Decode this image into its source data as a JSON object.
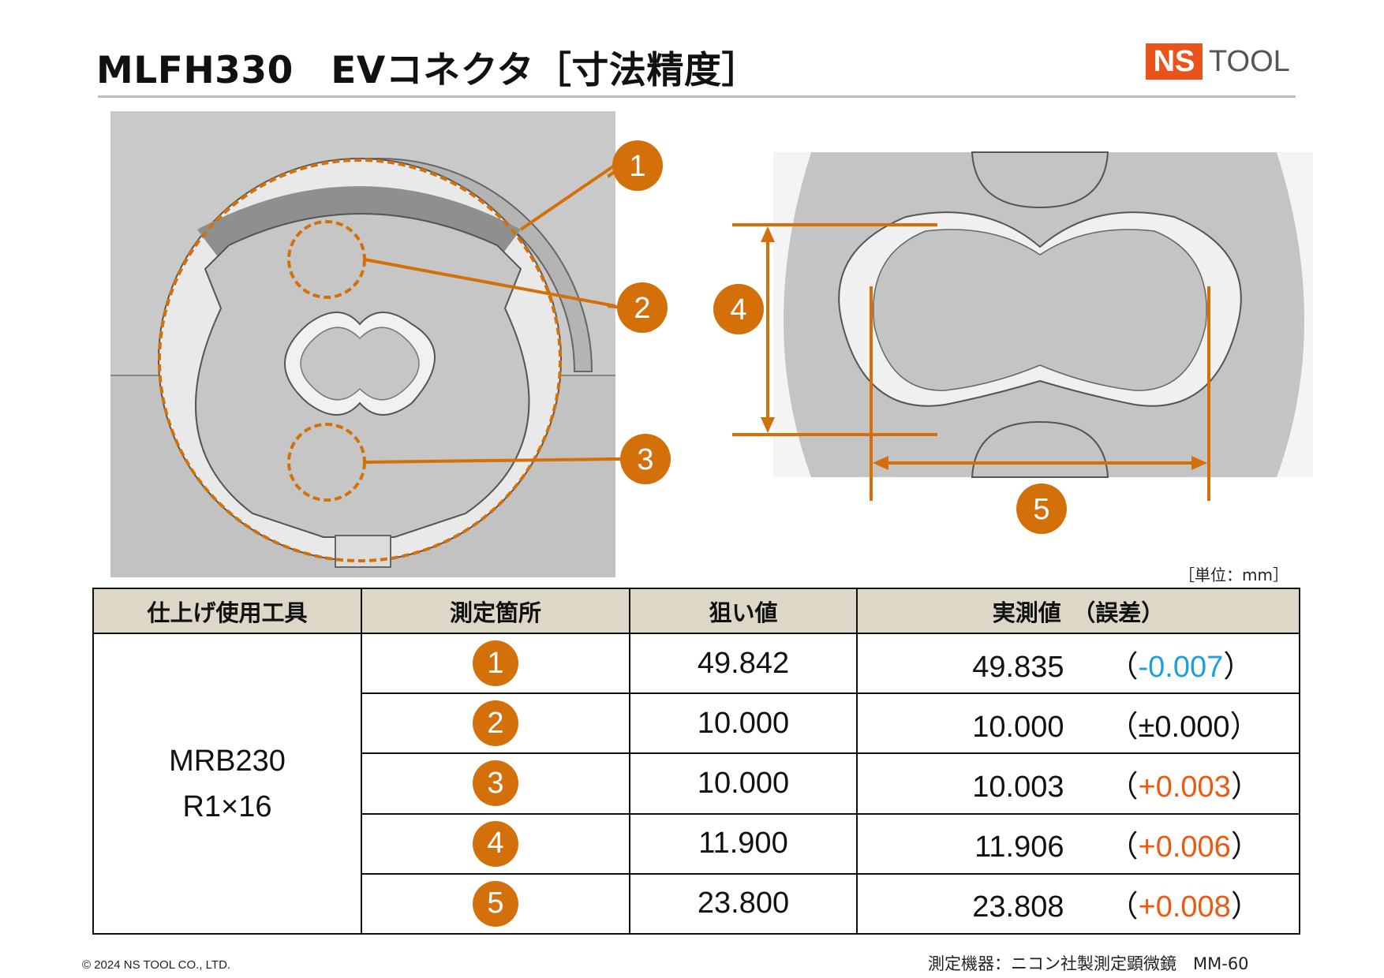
{
  "header": {
    "title": "MLFH330　EVコネクタ［寸法精度］",
    "logo": {
      "box_text": "NS",
      "text": "TOOL",
      "brand_color": "#e8541c"
    }
  },
  "figure_labels": {
    "left": [
      "1",
      "2",
      "3"
    ],
    "right": [
      "4",
      "5"
    ]
  },
  "unit_label": "［単位：mm］",
  "table": {
    "headers": [
      "仕上げ使用工具",
      "測定箇所",
      "狙い値",
      "実測値　（誤差）"
    ],
    "tool": {
      "line1": "MRB230",
      "line2": "R1×16"
    },
    "rows": [
      {
        "point": "1",
        "target": "49.842",
        "measured": "49.835",
        "error": "-0.007",
        "sign": "minus"
      },
      {
        "point": "2",
        "target": "10.000",
        "measured": "10.000",
        "error": "±0.000",
        "sign": "zero"
      },
      {
        "point": "3",
        "target": "10.000",
        "measured": "10.003",
        "error": "+0.003",
        "sign": "plus"
      },
      {
        "point": "4",
        "target": "11.900",
        "measured": "11.906",
        "error": "+0.006",
        "sign": "plus"
      },
      {
        "point": "5",
        "target": "23.800",
        "measured": "23.808",
        "error": "+0.008",
        "sign": "plus"
      }
    ],
    "paren_open": "（",
    "paren_close": "）"
  },
  "colors": {
    "badge": "#d4700a",
    "minus": "#1aa0e0",
    "plus": "#ec5a12",
    "header_bg": "#ddd7c8"
  },
  "footer": {
    "copyright": "© 2024 NS TOOL CO., LTD.",
    "instrument": "測定機器：ニコン社製測定顕微鏡　MM-60"
  }
}
